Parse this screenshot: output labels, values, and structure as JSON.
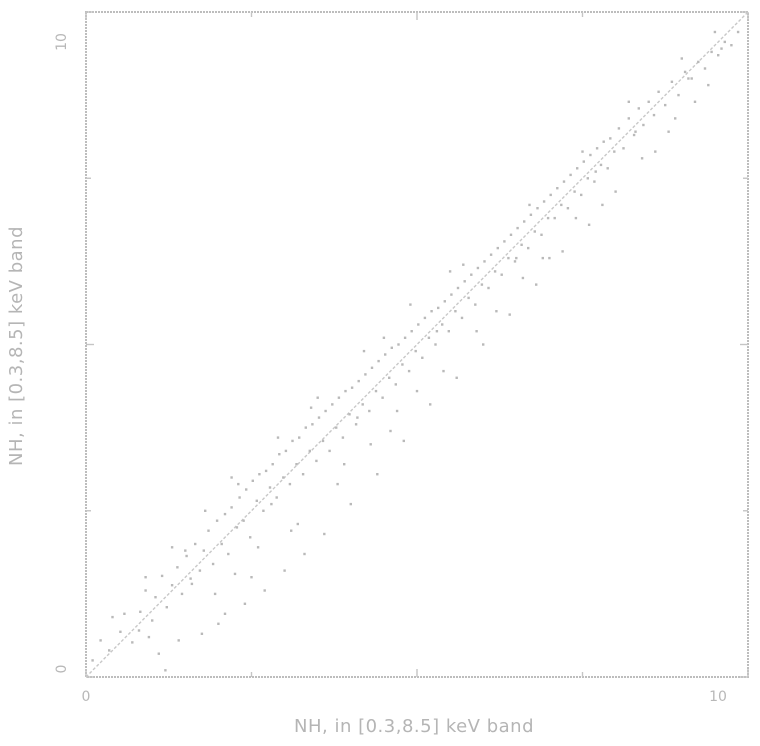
{
  "chart_data": {
    "type": "scatter",
    "title": "",
    "xlabel": "NH, in [0.3,8.5] keV band",
    "ylabel": "NH, in [0.3,8.5] keV band",
    "xlim": [
      0,
      10
    ],
    "ylim": [
      0,
      10
    ],
    "xticks": [
      0,
      5,
      10
    ],
    "yticks": [
      0,
      5,
      10
    ],
    "x_tick_labels": [
      "0",
      "",
      "10"
    ],
    "y_tick_labels": [
      "0",
      "",
      "10"
    ],
    "grid": false,
    "reference_line": {
      "x": [
        0,
        10
      ],
      "y": [
        0,
        10
      ]
    },
    "series": [
      {
        "points": [
          [
            0.1,
            0.25
          ],
          [
            0.22,
            0.55
          ],
          [
            0.35,
            0.4
          ],
          [
            0.52,
            0.68
          ],
          [
            0.58,
            0.95
          ],
          [
            0.7,
            0.52
          ],
          [
            0.82,
            0.98
          ],
          [
            0.9,
            1.3
          ],
          [
            1.0,
            0.85
          ],
          [
            1.05,
            1.2
          ],
          [
            1.15,
            1.52
          ],
          [
            1.22,
            1.05
          ],
          [
            1.3,
            1.38
          ],
          [
            1.38,
            1.65
          ],
          [
            1.45,
            1.25
          ],
          [
            1.52,
            1.82
          ],
          [
            1.58,
            1.48
          ],
          [
            1.65,
            2.0
          ],
          [
            1.72,
            1.6
          ],
          [
            1.78,
            1.9
          ],
          [
            1.85,
            2.2
          ],
          [
            1.92,
            1.7
          ],
          [
            1.98,
            2.35
          ],
          [
            2.05,
            2.0
          ],
          [
            2.1,
            2.45
          ],
          [
            2.15,
            1.85
          ],
          [
            2.2,
            2.55
          ],
          [
            2.28,
            2.25
          ],
          [
            2.32,
            2.7
          ],
          [
            2.38,
            2.35
          ],
          [
            2.42,
            2.82
          ],
          [
            2.48,
            2.1
          ],
          [
            2.52,
            2.95
          ],
          [
            2.58,
            2.65
          ],
          [
            2.62,
            3.05
          ],
          [
            2.68,
            2.5
          ],
          [
            2.72,
            3.1
          ],
          [
            2.78,
            2.85
          ],
          [
            2.82,
            3.2
          ],
          [
            2.88,
            2.7
          ],
          [
            2.92,
            3.35
          ],
          [
            2.98,
            3.0
          ],
          [
            3.02,
            3.4
          ],
          [
            3.08,
            2.9
          ],
          [
            3.12,
            3.55
          ],
          [
            3.18,
            3.2
          ],
          [
            3.22,
            3.6
          ],
          [
            3.28,
            3.05
          ],
          [
            3.32,
            3.75
          ],
          [
            3.38,
            3.4
          ],
          [
            3.42,
            3.8
          ],
          [
            3.48,
            3.25
          ],
          [
            3.52,
            3.9
          ],
          [
            3.58,
            3.55
          ],
          [
            3.62,
            4.0
          ],
          [
            3.68,
            3.4
          ],
          [
            3.72,
            4.1
          ],
          [
            3.78,
            3.75
          ],
          [
            3.82,
            4.2
          ],
          [
            3.88,
            3.6
          ],
          [
            3.92,
            4.3
          ],
          [
            3.98,
            3.95
          ],
          [
            4.02,
            4.35
          ],
          [
            4.08,
            3.8
          ],
          [
            4.12,
            4.45
          ],
          [
            4.18,
            4.1
          ],
          [
            4.22,
            4.55
          ],
          [
            4.28,
            4.0
          ],
          [
            4.32,
            4.65
          ],
          [
            4.38,
            4.3
          ],
          [
            4.42,
            4.75
          ],
          [
            4.48,
            4.2
          ],
          [
            4.52,
            4.85
          ],
          [
            4.58,
            4.5
          ],
          [
            4.62,
            4.95
          ],
          [
            4.68,
            4.4
          ],
          [
            4.72,
            5.0
          ],
          [
            4.78,
            4.7
          ],
          [
            4.82,
            5.1
          ],
          [
            4.88,
            4.6
          ],
          [
            4.92,
            5.2
          ],
          [
            4.98,
            4.9
          ],
          [
            5.02,
            5.3
          ],
          [
            5.08,
            4.8
          ],
          [
            5.12,
            5.4
          ],
          [
            5.18,
            5.1
          ],
          [
            5.22,
            5.5
          ],
          [
            5.28,
            5.0
          ],
          [
            5.32,
            5.55
          ],
          [
            5.38,
            5.3
          ],
          [
            5.42,
            5.65
          ],
          [
            5.48,
            5.2
          ],
          [
            5.52,
            5.75
          ],
          [
            5.58,
            5.5
          ],
          [
            5.62,
            5.85
          ],
          [
            5.68,
            5.4
          ],
          [
            5.72,
            5.95
          ],
          [
            5.78,
            5.7
          ],
          [
            5.82,
            6.05
          ],
          [
            5.88,
            5.6
          ],
          [
            5.92,
            6.15
          ],
          [
            5.98,
            5.9
          ],
          [
            6.02,
            6.25
          ],
          [
            6.08,
            5.85
          ],
          [
            6.12,
            6.35
          ],
          [
            6.18,
            6.1
          ],
          [
            6.22,
            6.45
          ],
          [
            6.28,
            6.05
          ],
          [
            6.32,
            6.55
          ],
          [
            6.38,
            6.3
          ],
          [
            6.42,
            6.65
          ],
          [
            6.48,
            6.25
          ],
          [
            6.52,
            6.75
          ],
          [
            6.58,
            6.5
          ],
          [
            6.62,
            6.85
          ],
          [
            6.68,
            6.45
          ],
          [
            6.72,
            6.95
          ],
          [
            6.78,
            6.7
          ],
          [
            6.82,
            7.05
          ],
          [
            6.88,
            6.65
          ],
          [
            6.92,
            7.15
          ],
          [
            6.98,
            6.9
          ],
          [
            7.02,
            7.25
          ],
          [
            7.08,
            6.9
          ],
          [
            7.12,
            7.35
          ],
          [
            7.18,
            7.1
          ],
          [
            7.22,
            7.45
          ],
          [
            7.28,
            7.05
          ],
          [
            7.32,
            7.55
          ],
          [
            7.38,
            7.3
          ],
          [
            7.42,
            7.65
          ],
          [
            7.48,
            7.25
          ],
          [
            7.52,
            7.75
          ],
          [
            7.58,
            7.5
          ],
          [
            7.62,
            7.85
          ],
          [
            7.68,
            7.45
          ],
          [
            7.72,
            7.95
          ],
          [
            7.78,
            7.7
          ],
          [
            7.82,
            8.05
          ],
          [
            7.88,
            7.65
          ],
          [
            7.92,
            8.1
          ],
          [
            7.98,
            7.9
          ],
          [
            8.05,
            8.25
          ],
          [
            8.12,
            7.95
          ],
          [
            8.2,
            8.4
          ],
          [
            8.28,
            8.15
          ],
          [
            8.35,
            8.55
          ],
          [
            8.42,
            8.3
          ],
          [
            8.5,
            8.65
          ],
          [
            8.58,
            8.45
          ],
          [
            8.65,
            8.8
          ],
          [
            8.75,
            8.6
          ],
          [
            8.85,
            8.95
          ],
          [
            8.95,
            8.75
          ],
          [
            9.05,
            9.1
          ],
          [
            9.15,
            9.0
          ],
          [
            9.25,
            9.25
          ],
          [
            9.35,
            9.15
          ],
          [
            9.45,
            9.4
          ],
          [
            9.55,
            9.35
          ],
          [
            9.65,
            9.55
          ],
          [
            9.75,
            9.5
          ],
          [
            9.85,
            9.7
          ],
          [
            1.1,
            0.35
          ],
          [
            1.4,
            0.55
          ],
          [
            1.75,
            0.65
          ],
          [
            2.1,
            0.95
          ],
          [
            2.4,
            1.1
          ],
          [
            2.7,
            1.3
          ],
          [
            3.0,
            1.6
          ],
          [
            3.3,
            1.85
          ],
          [
            2.25,
            1.55
          ],
          [
            1.95,
            1.25
          ],
          [
            3.6,
            2.15
          ],
          [
            4.0,
            2.6
          ],
          [
            4.4,
            3.05
          ],
          [
            4.8,
            3.55
          ],
          [
            5.2,
            4.1
          ],
          [
            5.6,
            4.5
          ],
          [
            6.0,
            5.0
          ],
          [
            6.4,
            5.45
          ],
          [
            6.8,
            5.9
          ],
          [
            7.2,
            6.4
          ],
          [
            7.6,
            6.8
          ],
          [
            8.0,
            7.3
          ],
          [
            8.4,
            7.8
          ],
          [
            8.8,
            8.2
          ],
          [
            9.2,
            8.65
          ],
          [
            3.2,
            2.3
          ],
          [
            3.8,
            2.9
          ],
          [
            4.6,
            3.7
          ],
          [
            5.4,
            4.6
          ],
          [
            6.2,
            5.5
          ],
          [
            7.0,
            6.3
          ],
          [
            7.8,
            7.1
          ],
          [
            8.6,
            7.9
          ],
          [
            9.4,
            8.9
          ],
          [
            1.2,
            0.1
          ],
          [
            0.95,
            0.6
          ],
          [
            2.0,
            0.8
          ],
          [
            4.7,
            4.0
          ],
          [
            5.9,
            5.2
          ],
          [
            2.5,
            1.5
          ],
          [
            3.9,
            3.2
          ],
          [
            4.3,
            3.5
          ],
          [
            6.6,
            6.0
          ],
          [
            7.4,
            6.9
          ],
          [
            3.1,
            2.2
          ],
          [
            2.6,
            1.95
          ],
          [
            5.0,
            4.3
          ],
          [
            6.9,
            6.3
          ],
          [
            8.9,
            8.4
          ],
          [
            0.8,
            0.7
          ],
          [
            1.6,
            1.4
          ],
          [
            2.8,
            2.6
          ],
          [
            4.1,
            3.9
          ],
          [
            5.3,
            5.2
          ],
          [
            6.5,
            6.3
          ],
          [
            7.7,
            7.6
          ],
          [
            8.3,
            8.2
          ],
          [
            9.1,
            9.0
          ],
          [
            9.6,
            9.45
          ],
          [
            1.5,
            1.9
          ],
          [
            2.3,
            2.9
          ],
          [
            3.4,
            4.05
          ],
          [
            4.5,
            5.1
          ],
          [
            5.7,
            6.2
          ],
          [
            6.7,
            7.1
          ],
          [
            7.5,
            7.9
          ],
          [
            8.2,
            8.65
          ],
          [
            9.0,
            9.3
          ],
          [
            9.5,
            9.7
          ],
          [
            0.4,
            0.9
          ],
          [
            0.9,
            1.5
          ],
          [
            1.3,
            1.95
          ],
          [
            1.8,
            2.5
          ],
          [
            2.2,
            3.0
          ],
          [
            2.9,
            3.6
          ],
          [
            3.5,
            4.2
          ],
          [
            4.2,
            4.9
          ],
          [
            4.9,
            5.6
          ],
          [
            5.5,
            6.1
          ]
        ]
      }
    ]
  }
}
